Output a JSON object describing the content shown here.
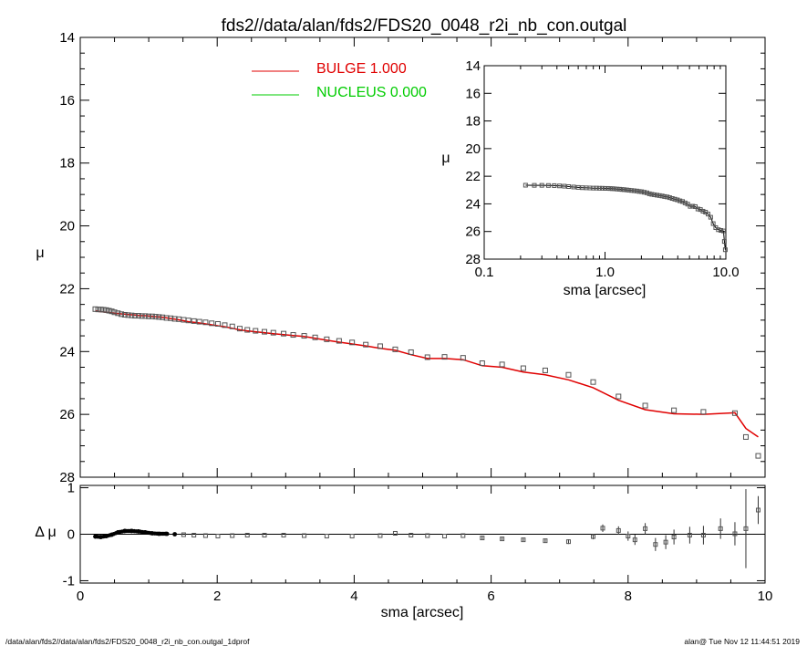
{
  "title": "fds2//data/alan/fds2/FDS20_0048_r2i_nb_con.outgal",
  "footer": {
    "left": "/data/alan/fds2//data/alan/fds2/FDS20_0048_r2i_nb_con.outgal_1dprof",
    "right": "alan@  Tue Nov 12 11:44:51 2019"
  },
  "colors": {
    "bulge": "#e00000",
    "nucleus": "#00cc00",
    "data": "#555555",
    "axes": "#000000"
  },
  "legend": [
    {
      "label": "BULGE  1.000",
      "color": "#e00000"
    },
    {
      "label": "NUCLEUS  0.000",
      "color": "#00cc00"
    }
  ],
  "chart_data": [
    {
      "type": "scatter",
      "panel": "main",
      "ylabel": "μ",
      "xlim": [
        0,
        10
      ],
      "ylim": [
        28,
        14
      ],
      "y_inverted": true,
      "xticks": [
        "0",
        "2",
        "4",
        "6",
        "8",
        "10"
      ],
      "yticks": [
        "14",
        "16",
        "18",
        "20",
        "22",
        "24",
        "26",
        "28"
      ],
      "series": [
        {
          "name": "data",
          "marker": "square",
          "points": [
            [
              0.22,
              22.65
            ],
            [
              0.26,
              22.66
            ],
            [
              0.3,
              22.66
            ],
            [
              0.34,
              22.67
            ],
            [
              0.38,
              22.68
            ],
            [
              0.42,
              22.7
            ],
            [
              0.46,
              22.72
            ],
            [
              0.5,
              22.75
            ],
            [
              0.55,
              22.78
            ],
            [
              0.6,
              22.81
            ],
            [
              0.65,
              22.83
            ],
            [
              0.7,
              22.84
            ],
            [
              0.75,
              22.85
            ],
            [
              0.8,
              22.86
            ],
            [
              0.85,
              22.86
            ],
            [
              0.9,
              22.87
            ],
            [
              0.95,
              22.87
            ],
            [
              1.0,
              22.88
            ],
            [
              1.05,
              22.88
            ],
            [
              1.1,
              22.89
            ],
            [
              1.15,
              22.9
            ],
            [
              1.2,
              22.91
            ],
            [
              1.26,
              22.93
            ],
            [
              1.32,
              22.94
            ],
            [
              1.38,
              22.96
            ],
            [
              1.44,
              22.97
            ],
            [
              1.51,
              22.99
            ],
            [
              1.58,
              23.01
            ],
            [
              1.66,
              23.03
            ],
            [
              1.74,
              23.05
            ],
            [
              1.83,
              23.07
            ],
            [
              1.92,
              23.1
            ],
            [
              2.01,
              23.12
            ],
            [
              2.11,
              23.16
            ],
            [
              2.22,
              23.2
            ],
            [
              2.33,
              23.27
            ],
            [
              2.44,
              23.31
            ],
            [
              2.56,
              23.34
            ],
            [
              2.69,
              23.37
            ],
            [
              2.82,
              23.4
            ],
            [
              2.97,
              23.43
            ],
            [
              3.11,
              23.47
            ],
            [
              3.27,
              23.5
            ],
            [
              3.43,
              23.55
            ],
            [
              3.6,
              23.61
            ],
            [
              3.78,
              23.66
            ],
            [
              3.97,
              23.71
            ],
            [
              4.17,
              23.78
            ],
            [
              4.38,
              23.83
            ],
            [
              4.6,
              23.93
            ],
            [
              4.83,
              24.02
            ],
            [
              5.07,
              24.18
            ],
            [
              5.32,
              24.17
            ],
            [
              5.59,
              24.2
            ],
            [
              5.87,
              24.37
            ],
            [
              6.16,
              24.41
            ],
            [
              6.47,
              24.53
            ],
            [
              6.79,
              24.6
            ],
            [
              7.13,
              24.74
            ],
            [
              7.49,
              24.97
            ],
            [
              7.86,
              25.43
            ],
            [
              8.25,
              25.72
            ],
            [
              8.67,
              25.87
            ],
            [
              9.1,
              25.92
            ],
            [
              9.56,
              25.96
            ],
            [
              9.72,
              26.72
            ],
            [
              9.9,
              27.32
            ]
          ]
        },
        {
          "name": "BULGE  1.000",
          "line": true,
          "points": [
            [
              0.22,
              22.7
            ],
            [
              0.26,
              22.72
            ],
            [
              0.3,
              22.73
            ],
            [
              0.34,
              22.74
            ],
            [
              0.38,
              22.75
            ],
            [
              0.42,
              22.76
            ],
            [
              0.46,
              22.77
            ],
            [
              0.5,
              22.78
            ],
            [
              0.55,
              22.79
            ],
            [
              0.6,
              22.8
            ],
            [
              0.65,
              22.81
            ],
            [
              0.7,
              22.82
            ],
            [
              0.75,
              22.83
            ],
            [
              0.8,
              22.84
            ],
            [
              0.85,
              22.85
            ],
            [
              0.9,
              22.86
            ],
            [
              0.95,
              22.86
            ],
            [
              1.0,
              22.87
            ],
            [
              1.05,
              22.88
            ],
            [
              1.1,
              22.89
            ],
            [
              1.15,
              22.9
            ],
            [
              1.2,
              22.91
            ],
            [
              1.26,
              22.93
            ],
            [
              1.32,
              22.95
            ],
            [
              1.38,
              22.97
            ],
            [
              1.44,
              22.99
            ],
            [
              1.51,
              23.02
            ],
            [
              1.58,
              23.05
            ],
            [
              1.66,
              23.07
            ],
            [
              1.74,
              23.09
            ],
            [
              1.83,
              23.12
            ],
            [
              1.92,
              23.15
            ],
            [
              2.01,
              23.18
            ],
            [
              2.11,
              23.21
            ],
            [
              2.22,
              23.26
            ],
            [
              2.33,
              23.31
            ],
            [
              2.44,
              23.34
            ],
            [
              2.56,
              23.37
            ],
            [
              2.69,
              23.4
            ],
            [
              2.82,
              23.43
            ],
            [
              2.97,
              23.46
            ],
            [
              3.11,
              23.49
            ],
            [
              3.27,
              23.52
            ],
            [
              3.43,
              23.58
            ],
            [
              3.6,
              23.64
            ],
            [
              3.78,
              23.7
            ],
            [
              3.97,
              23.76
            ],
            [
              4.17,
              23.82
            ],
            [
              4.38,
              23.9
            ],
            [
              4.6,
              23.96
            ],
            [
              4.83,
              24.1
            ],
            [
              5.07,
              24.22
            ],
            [
              5.32,
              24.22
            ],
            [
              5.59,
              24.26
            ],
            [
              5.87,
              24.45
            ],
            [
              6.16,
              24.5
            ],
            [
              6.47,
              24.65
            ],
            [
              6.79,
              24.74
            ],
            [
              7.13,
              24.9
            ],
            [
              7.49,
              25.15
            ],
            [
              7.86,
              25.55
            ],
            [
              8.25,
              25.85
            ],
            [
              8.67,
              25.98
            ],
            [
              9.1,
              26.0
            ],
            [
              9.56,
              25.95
            ],
            [
              9.72,
              26.45
            ],
            [
              9.9,
              26.72
            ]
          ]
        }
      ]
    },
    {
      "type": "scatter",
      "panel": "inset",
      "ylabel": "μ",
      "xlabel": "sma [arcsec]",
      "x_scale": "log",
      "xlim": [
        0.1,
        10
      ],
      "ylim": [
        28,
        14
      ],
      "y_inverted": true,
      "xticks": [
        "0.1",
        "1.0",
        "10.0"
      ],
      "yticks": [
        "14",
        "16",
        "18",
        "20",
        "22",
        "24",
        "26",
        "28"
      ],
      "note_points_from_main": true
    },
    {
      "type": "scatter",
      "panel": "residual",
      "ylabel": "Δ μ",
      "xlabel": "sma [arcsec]",
      "xlim": [
        0,
        10
      ],
      "ylim": [
        -1.05,
        1.05
      ],
      "xticks": [
        "0",
        "2",
        "4",
        "6",
        "8",
        "10"
      ],
      "yticks": [
        "-1",
        "0",
        "1"
      ],
      "series": [
        {
          "name": "residual",
          "points": [
            [
              0.22,
              -0.05,
              0
            ],
            [
              0.3,
              -0.06,
              0
            ],
            [
              0.38,
              -0.04,
              0
            ],
            [
              0.46,
              -0.01,
              0
            ],
            [
              0.55,
              0.04,
              0
            ],
            [
              0.65,
              0.07,
              0
            ],
            [
              0.75,
              0.07,
              0
            ],
            [
              0.85,
              0.06,
              0
            ],
            [
              0.95,
              0.04,
              0
            ],
            [
              1.05,
              0.02,
              0
            ],
            [
              1.15,
              0.01,
              0
            ],
            [
              1.26,
              0.01,
              0
            ],
            [
              1.38,
              0.0,
              0
            ],
            [
              1.51,
              -0.01,
              0
            ],
            [
              1.66,
              -0.02,
              0
            ],
            [
              1.83,
              -0.03,
              0
            ],
            [
              2.01,
              -0.04,
              0
            ],
            [
              2.22,
              -0.03,
              0
            ],
            [
              2.44,
              -0.02,
              0
            ],
            [
              2.69,
              -0.02,
              0
            ],
            [
              2.97,
              -0.02,
              0
            ],
            [
              3.27,
              -0.03,
              0
            ],
            [
              3.6,
              -0.04,
              0
            ],
            [
              3.97,
              -0.04,
              0
            ],
            [
              4.38,
              -0.03,
              0
            ],
            [
              4.6,
              0.02,
              0
            ],
            [
              4.83,
              -0.02,
              0
            ],
            [
              5.07,
              -0.03,
              0
            ],
            [
              5.32,
              -0.04,
              0
            ],
            [
              5.59,
              -0.03,
              0
            ],
            [
              5.87,
              -0.08,
              0.03
            ],
            [
              6.16,
              -0.1,
              0.03
            ],
            [
              6.47,
              -0.12,
              0.03
            ],
            [
              6.79,
              -0.14,
              0.04
            ],
            [
              7.13,
              -0.16,
              0.05
            ],
            [
              7.49,
              -0.05,
              0.06
            ],
            [
              7.63,
              0.13,
              0.08
            ],
            [
              7.86,
              0.08,
              0.09
            ],
            [
              8.0,
              -0.04,
              0.1
            ],
            [
              8.1,
              -0.12,
              0.11
            ],
            [
              8.25,
              0.12,
              0.12
            ],
            [
              8.4,
              -0.22,
              0.14
            ],
            [
              8.55,
              -0.17,
              0.15
            ],
            [
              8.67,
              -0.06,
              0.16
            ],
            [
              8.9,
              -0.02,
              0.18
            ],
            [
              9.1,
              -0.02,
              0.2
            ],
            [
              9.35,
              0.12,
              0.22
            ],
            [
              9.56,
              0.01,
              0.25
            ],
            [
              9.72,
              0.12,
              0.85
            ],
            [
              9.9,
              0.52,
              0.3
            ]
          ]
        }
      ]
    }
  ]
}
